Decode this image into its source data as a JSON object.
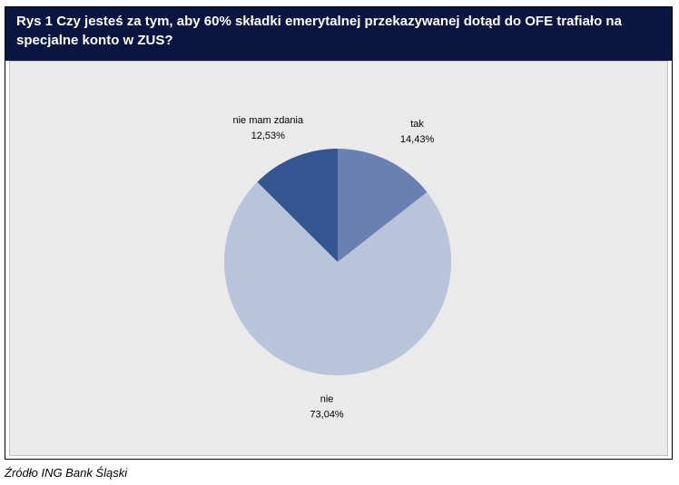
{
  "chart_data": {
    "type": "pie",
    "title": "Rys 1 Czy jesteś za tym, aby 60% składki emerytalnej przekazywanej dotąd do OFE trafiało na specjalne konto w ZUS?",
    "categories": [
      "tak",
      "nie",
      "nie mam zdania"
    ],
    "values": [
      14.43,
      73.04,
      12.53
    ],
    "value_labels": [
      "14,43%",
      "73,04%",
      "12,53%"
    ],
    "colors": [
      "#6a80b2",
      "#b8c3dc",
      "#34558f"
    ],
    "source": "Źródło ING Bank Śląski"
  }
}
